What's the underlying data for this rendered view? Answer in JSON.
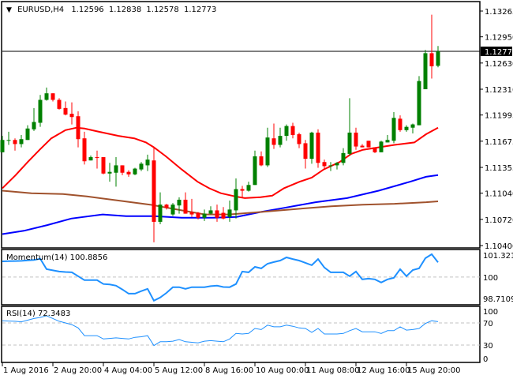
{
  "header": {
    "arrow_icon": "triangle-down-icon",
    "symbol": "EURUSD,H4",
    "open": "1.12596",
    "high": "1.12838",
    "low": "1.12578",
    "close": "1.12773"
  },
  "colors": {
    "bull": "#008000",
    "bear": "#ff0000",
    "ma_fast": "#ff0000",
    "ma_mid": "#0000ff",
    "ma_slow": "#a0522d",
    "indicator": "#1e90ff",
    "grid": "#c0c0c0"
  },
  "chart_data": [
    {
      "type": "candlestick",
      "title": "EURUSD,H4",
      "ylim": [
        1.104,
        1.13265
      ],
      "y_ticks": [
        "1.13265",
        "1.12950",
        "1.12630",
        "1.12310",
        "1.11995",
        "1.11675",
        "1.11355",
        "1.11040",
        "1.10720",
        "1.10400"
      ],
      "current_price": "1.12773",
      "x_tick_labels": [
        {
          "index": 0,
          "label": "1 Aug 2016"
        },
        {
          "index": 8,
          "label": "2 Aug 20:00"
        },
        {
          "index": 16,
          "label": "4 Aug 04:00"
        },
        {
          "index": 24,
          "label": "5 Aug 12:00"
        },
        {
          "index": 32,
          "label": "8 Aug 16:00"
        },
        {
          "index": 40,
          "label": "10 Aug 00:00"
        },
        {
          "index": 48,
          "label": "11 Aug 08:00"
        },
        {
          "index": 56,
          "label": "12 Aug 16:00"
        },
        {
          "index": 64,
          "label": "15 Aug 20:00"
        }
      ],
      "ohlc": [
        [
          1.1154,
          1.1174,
          1.1154,
          1.1169
        ],
        [
          1.1169,
          1.1179,
          1.1163,
          1.1169
        ],
        [
          1.1169,
          1.1171,
          1.1156,
          1.1164
        ],
        [
          1.1164,
          1.1175,
          1.116,
          1.117
        ],
        [
          1.1169,
          1.1187,
          1.1169,
          1.1183
        ],
        [
          1.1182,
          1.1208,
          1.118,
          1.1191
        ],
        [
          1.119,
          1.1224,
          1.1185,
          1.1218
        ],
        [
          1.1218,
          1.1233,
          1.1217,
          1.1226
        ],
        [
          1.1226,
          1.1226,
          1.1216,
          1.1218
        ],
        [
          1.1218,
          1.122,
          1.1206,
          1.1207
        ],
        [
          1.1208,
          1.1216,
          1.1199,
          1.12
        ],
        [
          1.1201,
          1.1215,
          1.1188,
          1.1197
        ],
        [
          1.1198,
          1.1204,
          1.116,
          1.117
        ],
        [
          1.1171,
          1.1179,
          1.1139,
          1.1143
        ],
        [
          1.1144,
          1.115,
          1.1144,
          1.1148
        ],
        [
          1.1148,
          1.1156,
          1.1134,
          1.1147
        ],
        [
          1.1148,
          1.1148,
          1.1127,
          1.1128
        ],
        [
          1.1128,
          1.1141,
          1.1118,
          1.113
        ],
        [
          1.1129,
          1.1148,
          1.1112,
          1.1138
        ],
        [
          1.1138,
          1.1138,
          1.1126,
          1.1129
        ],
        [
          1.113,
          1.1132,
          1.1124,
          1.1127
        ],
        [
          1.1127,
          1.1135,
          1.1126,
          1.1134
        ],
        [
          1.1133,
          1.1142,
          1.1131,
          1.114
        ],
        [
          1.1138,
          1.1151,
          1.1131,
          1.1145
        ],
        [
          1.1144,
          1.116,
          1.1044,
          1.1069
        ],
        [
          1.1069,
          1.1105,
          1.1066,
          1.109
        ],
        [
          1.109,
          1.1091,
          1.1084,
          1.1086
        ],
        [
          1.1078,
          1.1092,
          1.1076,
          1.109
        ],
        [
          1.1089,
          1.1099,
          1.1079,
          1.1096
        ],
        [
          1.1096,
          1.1105,
          1.1079,
          1.1079
        ],
        [
          1.1081,
          1.1097,
          1.1075,
          1.1078
        ],
        [
          1.108,
          1.1081,
          1.1072,
          1.1074
        ],
        [
          1.1074,
          1.1084,
          1.107,
          1.1079
        ],
        [
          1.1079,
          1.1088,
          1.1078,
          1.1083
        ],
        [
          1.1083,
          1.109,
          1.1069,
          1.1074
        ],
        [
          1.108,
          1.1087,
          1.1072,
          1.1073
        ],
        [
          1.1075,
          1.1095,
          1.1069,
          1.1084
        ],
        [
          1.1083,
          1.1122,
          1.1073,
          1.1109
        ],
        [
          1.1109,
          1.1113,
          1.1099,
          1.1107
        ],
        [
          1.1107,
          1.1118,
          1.1106,
          1.1114
        ],
        [
          1.1114,
          1.1156,
          1.1114,
          1.1149
        ],
        [
          1.1149,
          1.1155,
          1.1137,
          1.1138
        ],
        [
          1.1138,
          1.1184,
          1.1136,
          1.1172
        ],
        [
          1.1171,
          1.1189,
          1.1158,
          1.1163
        ],
        [
          1.1163,
          1.1184,
          1.116,
          1.1174
        ],
        [
          1.1174,
          1.1188,
          1.1168,
          1.1186
        ],
        [
          1.1186,
          1.119,
          1.1171,
          1.1175
        ],
        [
          1.1176,
          1.1178,
          1.1159,
          1.1164
        ],
        [
          1.1165,
          1.1169,
          1.1134,
          1.1146
        ],
        [
          1.1146,
          1.1179,
          1.114,
          1.1178
        ],
        [
          1.1178,
          1.1182,
          1.1135,
          1.1141
        ],
        [
          1.1142,
          1.1145,
          1.1133,
          1.1137
        ],
        [
          1.1138,
          1.1142,
          1.1131,
          1.1138
        ],
        [
          1.1138,
          1.1142,
          1.1133,
          1.1141
        ],
        [
          1.1141,
          1.1159,
          1.1138,
          1.1153
        ],
        [
          1.1152,
          1.122,
          1.115,
          1.1178
        ],
        [
          1.1178,
          1.1184,
          1.1157,
          1.1161
        ],
        [
          1.1162,
          1.1164,
          1.116,
          1.116
        ],
        [
          1.1168,
          1.1168,
          1.116,
          1.116
        ],
        [
          1.116,
          1.116,
          1.1153,
          1.1154
        ],
        [
          1.1154,
          1.1168,
          1.1154,
          1.1167
        ],
        [
          1.1166,
          1.1175,
          1.1166,
          1.1169
        ],
        [
          1.1168,
          1.1203,
          1.1165,
          1.1196
        ],
        [
          1.1195,
          1.1199,
          1.1179,
          1.1181
        ],
        [
          1.1181,
          1.1187,
          1.1179,
          1.1185
        ],
        [
          1.1184,
          1.1189,
          1.1177,
          1.1188
        ],
        [
          1.1187,
          1.1247,
          1.1187,
          1.1241
        ],
        [
          1.1231,
          1.1279,
          1.1231,
          1.1275
        ],
        [
          1.1275,
          1.1322,
          1.1244,
          1.1259
        ],
        [
          1.12596,
          1.12838,
          1.12578,
          1.12773
        ]
      ],
      "moving_averages": [
        {
          "name": "ma_fast",
          "points": [
            [
              0,
              1.111
            ],
            [
              2.1,
              1.1126
            ],
            [
              4,
              1.1142
            ],
            [
              5.9,
              1.1157
            ],
            [
              7.75,
              1.1171
            ],
            [
              10,
              1.1181
            ],
            [
              11.75,
              1.1184
            ],
            [
              13,
              1.1183
            ],
            [
              15.9,
              1.1178
            ],
            [
              18.4,
              1.1174
            ],
            [
              20.9,
              1.1171
            ],
            [
              22.75,
              1.1166
            ],
            [
              24,
              1.116
            ],
            [
              25.9,
              1.1149
            ],
            [
              28.4,
              1.1133
            ],
            [
              30.9,
              1.1118
            ],
            [
              32.75,
              1.111
            ],
            [
              34.6,
              1.1104
            ],
            [
              36.9,
              1.11
            ],
            [
              38.4,
              1.1098
            ],
            [
              40.9,
              1.1099
            ],
            [
              42.75,
              1.1101
            ],
            [
              44.6,
              1.111
            ],
            [
              47.1,
              1.1118
            ],
            [
              49,
              1.1123
            ],
            [
              50.9,
              1.1133
            ],
            [
              53.4,
              1.1142
            ],
            [
              55.25,
              1.1152
            ],
            [
              57.1,
              1.1157
            ],
            [
              59.6,
              1.116
            ],
            [
              62.1,
              1.1163
            ],
            [
              65.25,
              1.1166
            ],
            [
              67.1,
              1.1176
            ],
            [
              69,
              1.1184
            ]
          ]
        },
        {
          "name": "ma_mid",
          "points": [
            [
              0,
              1.1054
            ],
            [
              3.4,
              1.1058
            ],
            [
              7.1,
              1.1065
            ],
            [
              10.9,
              1.1073
            ],
            [
              15.9,
              1.1078
            ],
            [
              19.6,
              1.1076
            ],
            [
              24,
              1.1076
            ],
            [
              28.4,
              1.1074
            ],
            [
              33.4,
              1.1074
            ],
            [
              37.1,
              1.1075
            ],
            [
              40.9,
              1.1081
            ],
            [
              44.6,
              1.1086
            ],
            [
              49.6,
              1.1093
            ],
            [
              54.6,
              1.1098
            ],
            [
              59.6,
              1.1107
            ],
            [
              64.6,
              1.1118
            ],
            [
              67.1,
              1.1124
            ],
            [
              69,
              1.1126
            ]
          ]
        },
        {
          "name": "ma_slow",
          "points": [
            [
              0,
              1.1107
            ],
            [
              4.6,
              1.1104
            ],
            [
              9.6,
              1.1103
            ],
            [
              13.4,
              1.11
            ],
            [
              18.4,
              1.1095
            ],
            [
              23.4,
              1.109
            ],
            [
              28.4,
              1.1083
            ],
            [
              32.1,
              1.1078
            ],
            [
              35.9,
              1.1078
            ],
            [
              40.9,
              1.1081
            ],
            [
              47.1,
              1.1085
            ],
            [
              52.1,
              1.1088
            ],
            [
              57.1,
              1.109
            ],
            [
              62.1,
              1.1091
            ],
            [
              67.1,
              1.1093
            ],
            [
              69,
              1.1094
            ]
          ]
        }
      ]
    },
    {
      "type": "line",
      "title": "Momentum(14) 100.8856",
      "ylim": [
        98.7109,
        101.3213
      ],
      "y_ticks": [
        "101.3213",
        "100",
        "98.7109"
      ],
      "level_lines": [
        100
      ],
      "values": [
        100.94,
        100.95,
        100.96,
        100.97,
        101.0,
        101.02,
        101.1,
        100.47,
        100.4,
        100.33,
        100.3,
        100.28,
        100.05,
        99.81,
        99.81,
        99.81,
        99.58,
        99.55,
        99.48,
        99.25,
        99.0,
        99.0,
        99.15,
        99.29,
        98.58,
        98.77,
        99.05,
        99.39,
        99.39,
        99.29,
        99.39,
        99.39,
        99.39,
        99.45,
        99.48,
        99.4,
        99.39,
        99.58,
        100.33,
        100.28,
        100.61,
        100.52,
        100.8,
        100.9,
        100.99,
        101.18,
        101.08,
        100.99,
        100.85,
        100.71,
        101.08,
        100.57,
        100.28,
        100.28,
        100.28,
        100.05,
        100.33,
        99.86,
        99.9,
        99.86,
        99.67,
        99.86,
        99.95,
        100.47,
        100.05,
        100.42,
        100.52,
        101.13,
        101.37,
        100.8856
      ]
    },
    {
      "type": "line",
      "title": "RSI(14) 72.3483",
      "ylim": [
        0,
        100
      ],
      "y_ticks": [
        "100",
        "70",
        "30",
        "0"
      ],
      "level_lines": [
        70,
        30
      ],
      "values": [
        74,
        73.5,
        73,
        72,
        75,
        78,
        80,
        83,
        78,
        73,
        70,
        67,
        61,
        47,
        47,
        47,
        41,
        42,
        43,
        42,
        41,
        44,
        45,
        47,
        29,
        36,
        36,
        37,
        40,
        36,
        35,
        34,
        37,
        38,
        37,
        36,
        41,
        51,
        50,
        51,
        60,
        58,
        66,
        63,
        63,
        66,
        64,
        61,
        60,
        53,
        60,
        50,
        50,
        50,
        51,
        56,
        60,
        54,
        54,
        54,
        51,
        56,
        56,
        63,
        57,
        58,
        60,
        69,
        74,
        72.3483
      ]
    }
  ]
}
